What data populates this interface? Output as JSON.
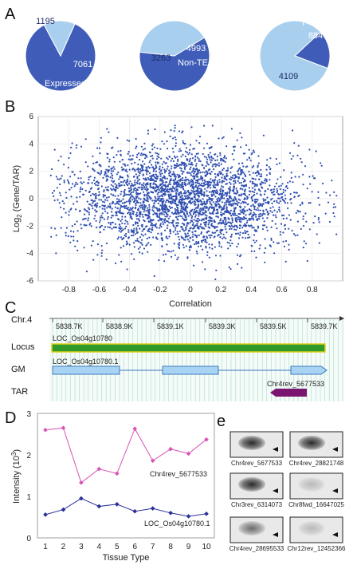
{
  "panel_letters": [
    "A",
    "B",
    "C",
    "D",
    "e"
  ],
  "colors": {
    "dark_blue": "#3f5db8",
    "light_blue": "#a9cfee",
    "scatter_blue": "#2f4fb0",
    "locus_green": "#2f9a2a",
    "locus_border": "#e0d21a",
    "gm_fill": "#a9d3f3",
    "gm_border": "#3a78c0",
    "tar_purple": "#7a1670",
    "chr4rev_line": "#d955b5",
    "loc_line": "#2a2f9a",
    "grid_green": "#9fd4bf"
  },
  "pies": [
    {
      "slices": [
        {
          "value": 7061,
          "label": "7061",
          "color": "dark_blue"
        },
        {
          "value": 1195,
          "label": "1195",
          "color": "light_blue"
        }
      ],
      "caption": "Expressed"
    },
    {
      "slices": [
        {
          "value": 4993,
          "label": "4993",
          "color": "dark_blue"
        },
        {
          "value": 3263,
          "label": "3263",
          "color": "light_blue"
        }
      ],
      "caption": "Non-TE"
    },
    {
      "slices": [
        {
          "value": 884,
          "label": "884",
          "color": "dark_blue"
        },
        {
          "value": 4109,
          "label": "4109",
          "color": "light_blue"
        }
      ],
      "caption": "r<-0.4"
    }
  ],
  "chart_data": [
    {
      "type": "pie",
      "slices": [
        {
          "label": "Expressed",
          "value": 7061
        },
        {
          "label": "",
          "value": 1195
        }
      ]
    },
    {
      "type": "pie",
      "slices": [
        {
          "label": "Non-TE",
          "value": 4993
        },
        {
          "label": "",
          "value": 3263
        }
      ]
    },
    {
      "type": "pie",
      "slices": [
        {
          "label": "r<-0.4",
          "value": 884
        },
        {
          "label": "",
          "value": 4109
        }
      ]
    },
    {
      "type": "scatter",
      "xlabel": "Correlation",
      "ylabel": "Log2 (Gene/TAR)",
      "xlim": [
        -1.0,
        1.0
      ],
      "ylim": [
        -6,
        6
      ],
      "xticks": [
        "-0.8",
        "-0.6",
        "-0.4",
        "-0.2",
        "0",
        "0.2",
        "0.4",
        "0.6",
        "0.8"
      ],
      "yticks": [
        "6",
        "4",
        "2",
        "0",
        "-2",
        "-4",
        "-6"
      ],
      "grid": true,
      "approx_points": 4993,
      "cloud": {
        "x_center": -0.05,
        "x_spread": 0.38,
        "y_center": 0.0,
        "y_spread": 1.9
      }
    },
    {
      "type": "line",
      "xlabel": "Tissue Type",
      "ylabel": "Intensity (10³)",
      "x": [
        1,
        2,
        3,
        4,
        5,
        6,
        7,
        8,
        9,
        10
      ],
      "ylim": [
        0,
        3
      ],
      "yticks": [
        "3",
        "2",
        "1",
        "0"
      ],
      "series": [
        {
          "name": "Chr4rev_5677533",
          "values": [
            2.6,
            2.65,
            1.33,
            1.66,
            1.55,
            2.63,
            1.86,
            2.14,
            2.03,
            2.37
          ],
          "color": "chr4rev_line"
        },
        {
          "name": "LOC_Os04g10780.1",
          "values": [
            0.56,
            0.68,
            0.95,
            0.76,
            0.81,
            0.64,
            0.71,
            0.6,
            0.52,
            0.58
          ],
          "color": "loc_line"
        }
      ]
    }
  ],
  "scatter": {
    "xlabel": "Correlation",
    "ylabel_main": "Log",
    "ylabel_sub": "2",
    "ylabel_rest": " (Gene/TAR)"
  },
  "genome": {
    "chr": "Chr.4",
    "coords": [
      "5838.7K",
      "5838.9K",
      "5839.1K",
      "5839.3K",
      "5839.5K",
      "5839.7K"
    ],
    "tracks": [
      "Locus",
      "GM",
      "TAR"
    ],
    "locus_name": "LOC_Os04g10780",
    "gm_name": "LOC_Os04g10780.1",
    "tar_name": "Chr4rev_5677533"
  },
  "line_chart": {
    "xlabel": "Tissue Type",
    "ylabel_main": "Intensity (10",
    "ylabel_sup": "3",
    "ylabel_end": ")",
    "label_series1": "Chr4rev_5677533",
    "label_series2": "LOC_Os04g10780.1"
  },
  "gels": [
    {
      "caption": "Chr4rev_5677533",
      "intensity": 0.9
    },
    {
      "caption": "Chr4rev_28821748",
      "intensity": 0.85
    },
    {
      "caption": "Chr3rev_6314073",
      "intensity": 0.85
    },
    {
      "caption": "Chr8fwd_16647025",
      "intensity": 0.3
    },
    {
      "caption": "Chr4rev_28695533",
      "intensity": 0.55
    },
    {
      "caption": "Chr12rev_12452366",
      "intensity": 0.25
    }
  ]
}
